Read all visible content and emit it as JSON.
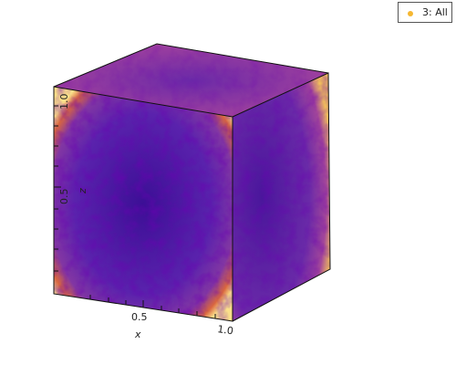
{
  "chart_data": {
    "type": "scatter",
    "projection": "3d-box",
    "legend": {
      "placement": "top-right",
      "entries": [
        {
          "label": "3: All",
          "color": "#f5b731"
        }
      ]
    },
    "axes": {
      "x": {
        "label": "x",
        "range": [
          0.0,
          1.0
        ],
        "ticks": [
          "0.5",
          "1.0"
        ]
      },
      "z": {
        "label": "z",
        "range": [
          0.0,
          1.0
        ],
        "ticks": [
          "0.5",
          "1.0"
        ]
      }
    },
    "colors": {
      "core": "#3c0f96",
      "mid": "#6a2aa8",
      "edge": "#d9663f",
      "rim": "#fbe08a",
      "box_edges": "#111111"
    },
    "grid": false
  }
}
